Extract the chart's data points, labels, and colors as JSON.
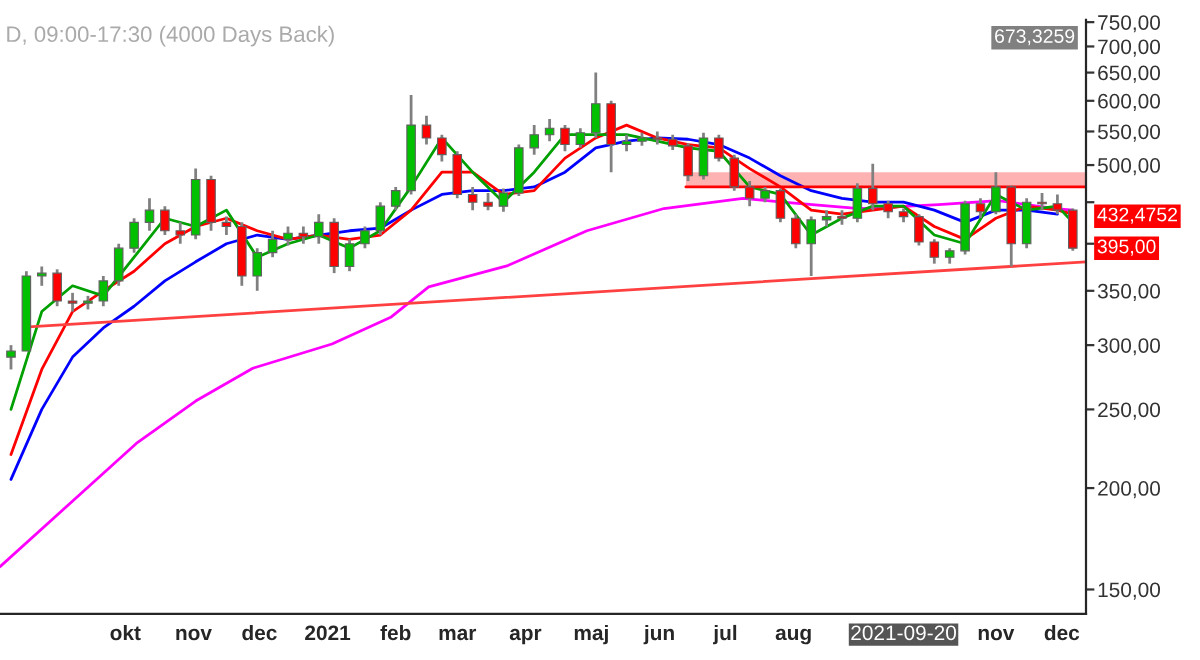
{
  "chart_data": {
    "type": "candlestick",
    "title": "D, 09:00-17:30 (4000 Days Back)",
    "x": [
      "2020-08-10",
      "2020-08-17",
      "2020-08-24",
      "2020-08-31",
      "2020-09-07",
      "2020-09-14",
      "2020-09-21",
      "2020-09-28",
      "2020-10-05",
      "2020-10-12",
      "2020-10-19",
      "2020-10-26",
      "2020-11-02",
      "2020-11-09",
      "2020-11-16",
      "2020-11-23",
      "2020-11-30",
      "2020-12-07",
      "2020-12-14",
      "2020-12-21",
      "2020-12-28",
      "2021-01-04",
      "2021-01-11",
      "2021-01-18",
      "2021-01-25",
      "2021-02-01",
      "2021-02-08",
      "2021-02-15",
      "2021-02-22",
      "2021-03-01",
      "2021-03-08",
      "2021-03-15",
      "2021-03-22",
      "2021-03-29",
      "2021-04-05",
      "2021-04-12",
      "2021-04-19",
      "2021-04-26",
      "2021-05-03",
      "2021-05-10",
      "2021-05-17",
      "2021-05-24",
      "2021-05-31",
      "2021-06-07",
      "2021-06-14",
      "2021-06-21",
      "2021-06-28",
      "2021-07-05",
      "2021-07-12",
      "2021-07-19",
      "2021-07-26",
      "2021-08-02",
      "2021-08-09",
      "2021-08-16",
      "2021-08-23",
      "2021-08-30",
      "2021-09-06",
      "2021-09-13",
      "2021-09-20",
      "2021-09-27",
      "2021-10-04",
      "2021-10-11",
      "2021-10-18",
      "2021-10-25",
      "2021-11-01",
      "2021-11-08",
      "2021-11-15",
      "2021-11-22",
      "2021-11-29",
      "2021-12-06"
    ],
    "ohlc": [
      [
        290,
        300,
        280,
        295
      ],
      [
        295,
        370,
        295,
        365
      ],
      [
        365,
        375,
        355,
        368
      ],
      [
        368,
        372,
        335,
        340
      ],
      [
        340,
        348,
        330,
        338
      ],
      [
        338,
        345,
        332,
        340
      ],
      [
        340,
        365,
        335,
        360
      ],
      [
        360,
        400,
        355,
        395
      ],
      [
        395,
        430,
        390,
        425
      ],
      [
        425,
        455,
        415,
        440
      ],
      [
        440,
        445,
        410,
        415
      ],
      [
        415,
        425,
        400,
        410
      ],
      [
        410,
        495,
        405,
        480
      ],
      [
        480,
        485,
        415,
        425
      ],
      [
        425,
        432,
        410,
        420
      ],
      [
        420,
        425,
        355,
        365
      ],
      [
        365,
        395,
        350,
        390
      ],
      [
        390,
        415,
        385,
        405
      ],
      [
        405,
        420,
        398,
        412
      ],
      [
        412,
        420,
        400,
        408
      ],
      [
        408,
        435,
        400,
        425
      ],
      [
        425,
        430,
        368,
        375
      ],
      [
        375,
        405,
        370,
        400
      ],
      [
        400,
        420,
        395,
        415
      ],
      [
        415,
        450,
        410,
        445
      ],
      [
        445,
        470,
        440,
        465
      ],
      [
        465,
        610,
        460,
        560
      ],
      [
        560,
        575,
        530,
        540
      ],
      [
        540,
        545,
        505,
        515
      ],
      [
        515,
        520,
        455,
        460
      ],
      [
        460,
        470,
        440,
        450
      ],
      [
        450,
        462,
        440,
        445
      ],
      [
        445,
        468,
        438,
        462
      ],
      [
        462,
        530,
        458,
        525
      ],
      [
        525,
        560,
        515,
        545
      ],
      [
        545,
        570,
        535,
        555
      ],
      [
        555,
        560,
        520,
        530
      ],
      [
        530,
        555,
        525,
        548
      ],
      [
        548,
        650,
        540,
        595
      ],
      [
        595,
        600,
        490,
        530
      ],
      [
        530,
        545,
        520,
        535
      ],
      [
        535,
        548,
        528,
        540
      ],
      [
        540,
        550,
        530,
        538
      ],
      [
        538,
        545,
        522,
        528
      ],
      [
        528,
        532,
        478,
        485
      ],
      [
        485,
        548,
        480,
        540
      ],
      [
        540,
        545,
        505,
        510
      ],
      [
        510,
        515,
        465,
        470
      ],
      [
        470,
        478,
        445,
        455
      ],
      [
        455,
        470,
        450,
        465
      ],
      [
        465,
        468,
        425,
        430
      ],
      [
        430,
        435,
        395,
        400
      ],
      [
        400,
        432,
        365,
        428
      ],
      [
        428,
        440,
        420,
        432
      ],
      [
        432,
        440,
        422,
        430
      ],
      [
        430,
        475,
        425,
        468
      ],
      [
        468,
        502,
        440,
        448
      ],
      [
        448,
        452,
        430,
        438
      ],
      [
        438,
        442,
        425,
        432
      ],
      [
        432,
        435,
        398,
        402
      ],
      [
        402,
        405,
        378,
        385
      ],
      [
        385,
        395,
        378,
        392
      ],
      [
        392,
        452,
        388,
        448
      ],
      [
        448,
        455,
        430,
        438
      ],
      [
        438,
        490,
        435,
        470
      ],
      [
        470,
        472,
        375,
        400
      ],
      [
        400,
        455,
        395,
        450
      ],
      [
        450,
        462,
        440,
        448
      ],
      [
        448,
        460,
        435,
        440
      ],
      [
        440,
        442,
        392,
        395
      ]
    ],
    "series": [
      {
        "type": "line",
        "color": "#ff00ff",
        "x": [
          "2020-08-05",
          "2020-10-06",
          "2020-11-02",
          "2020-11-28",
          "2021-01-03",
          "2021-01-30",
          "2021-02-16",
          "2021-03-24",
          "2021-04-29",
          "2021-06-03",
          "2021-07-09",
          "2021-07-27",
          "2021-08-31",
          "2021-10-06",
          "2021-11-02",
          "2021-11-28",
          "2021-12-06"
        ],
        "values": [
          160,
          227,
          256,
          281,
          301,
          325,
          354,
          376,
          415,
          442,
          455,
          450,
          442,
          447,
          452,
          442,
          440
        ]
      },
      {
        "type": "line",
        "color": "#0000ff",
        "x": [
          "2020-08-10",
          "2020-08-24",
          "2020-09-07",
          "2020-09-21",
          "2020-10-05",
          "2020-10-19",
          "2020-11-02",
          "2020-11-16",
          "2020-11-30",
          "2020-12-14",
          "2020-12-28",
          "2021-01-11",
          "2021-01-25",
          "2021-02-08",
          "2021-02-22",
          "2021-03-08",
          "2021-03-22",
          "2021-04-05",
          "2021-04-19",
          "2021-05-03",
          "2021-05-17",
          "2021-05-31",
          "2021-06-14",
          "2021-06-28",
          "2021-07-12",
          "2021-07-26",
          "2021-08-09",
          "2021-08-23",
          "2021-09-06",
          "2021-09-20",
          "2021-10-04",
          "2021-10-18",
          "2021-11-01",
          "2021-11-15",
          "2021-11-29"
        ],
        "values": [
          205,
          250,
          290,
          315,
          335,
          360,
          380,
          400,
          410,
          405,
          410,
          415,
          418,
          440,
          460,
          465,
          465,
          470,
          490,
          525,
          535,
          540,
          538,
          530,
          510,
          485,
          465,
          455,
          450,
          450,
          440,
          425,
          440,
          440,
          435
        ]
      },
      {
        "type": "line",
        "color": "#ff0000",
        "x": [
          "2020-08-10",
          "2020-08-24",
          "2020-09-07",
          "2020-09-21",
          "2020-10-05",
          "2020-10-19",
          "2020-11-02",
          "2020-11-16",
          "2020-11-30",
          "2020-12-14",
          "2020-12-28",
          "2021-01-11",
          "2021-01-25",
          "2021-02-08",
          "2021-02-22",
          "2021-03-08",
          "2021-03-22",
          "2021-04-05",
          "2021-04-19",
          "2021-05-03",
          "2021-05-17",
          "2021-05-31",
          "2021-06-14",
          "2021-06-28",
          "2021-07-12",
          "2021-07-26",
          "2021-08-09",
          "2021-08-23",
          "2021-09-06",
          "2021-09-20",
          "2021-10-04",
          "2021-10-18",
          "2021-11-01",
          "2021-11-15",
          "2021-11-29",
          "2021-12-06"
        ],
        "values": [
          220,
          280,
          330,
          350,
          370,
          400,
          420,
          430,
          415,
          405,
          410,
          405,
          410,
          440,
          490,
          490,
          460,
          465,
          510,
          540,
          560,
          540,
          530,
          525,
          495,
          470,
          440,
          435,
          440,
          445,
          420,
          405,
          430,
          445,
          440,
          435
        ]
      },
      {
        "type": "line",
        "color": "#00a000",
        "x": [
          "2020-08-10",
          "2020-08-24",
          "2020-09-07",
          "2020-09-21",
          "2020-10-05",
          "2020-10-19",
          "2020-11-02",
          "2020-11-16",
          "2020-11-30",
          "2020-12-14",
          "2020-12-28",
          "2021-01-11",
          "2021-01-25",
          "2021-02-08",
          "2021-02-22",
          "2021-03-08",
          "2021-03-22",
          "2021-04-05",
          "2021-04-19",
          "2021-05-03",
          "2021-05-17",
          "2021-05-31",
          "2021-06-14",
          "2021-06-28",
          "2021-07-12",
          "2021-07-26",
          "2021-08-09",
          "2021-08-23",
          "2021-09-06",
          "2021-09-20",
          "2021-10-04",
          "2021-10-18",
          "2021-11-01",
          "2021-11-15",
          "2021-11-29",
          "2021-12-06"
        ],
        "values": [
          250,
          330,
          355,
          345,
          385,
          430,
          420,
          440,
          385,
          400,
          410,
          395,
          415,
          470,
          540,
          490,
          450,
          490,
          545,
          545,
          545,
          535,
          525,
          520,
          470,
          460,
          410,
          430,
          445,
          445,
          410,
          400,
          460,
          440,
          445,
          425
        ]
      },
      {
        "type": "line",
        "color": "#ff4040",
        "x": [
          "2020-08-18",
          "2021-12-12"
        ],
        "values": [
          316,
          380
        ]
      },
      {
        "type": "line",
        "color": "#ff0000",
        "x": [
          "2021-06-13",
          "2021-12-12"
        ],
        "values": [
          470,
          470
        ],
        "lower": [
          470,
          470
        ],
        "upper": [
          490,
          490
        ]
      }
    ],
    "xlim": [
      "2020-08-05",
      "2021-12-12"
    ],
    "xticks": [
      {
        "value": "2020-10-01",
        "label": "okt"
      },
      {
        "value": "2020-11-01",
        "label": "nov"
      },
      {
        "value": "2020-12-01",
        "label": "dec"
      },
      {
        "value": "2021-01-01",
        "label": "2021"
      },
      {
        "value": "2021-02-01",
        "label": "feb"
      },
      {
        "value": "2021-03-01",
        "label": "mar"
      },
      {
        "value": "2021-04-01",
        "label": "apr"
      },
      {
        "value": "2021-05-01",
        "label": "maj"
      },
      {
        "value": "2021-06-01",
        "label": "jun"
      },
      {
        "value": "2021-07-01",
        "label": "jul"
      },
      {
        "value": "2021-08-01",
        "label": "aug"
      },
      {
        "value": "2021-09-20",
        "label": "2021-09-20"
      },
      {
        "value": "2021-11-01",
        "label": "nov"
      },
      {
        "value": "2021-12-01",
        "label": "dec"
      }
    ],
    "ylim": [
      140,
      755
    ],
    "log": true,
    "yticks": [
      {
        "value": 150,
        "label": "150,00"
      },
      {
        "value": 200,
        "label": "200,00"
      },
      {
        "value": 250,
        "label": "250,00"
      },
      {
        "value": 300,
        "label": "300,00"
      },
      {
        "value": 350,
        "label": "350,00"
      },
      {
        "value": 400,
        "label": null
      },
      {
        "value": 450,
        "label": null
      },
      {
        "value": 500,
        "label": "500,00"
      },
      {
        "value": 550,
        "label": "550,00"
      },
      {
        "value": 600,
        "label": "600,00"
      },
      {
        "value": 650,
        "label": "650,00"
      },
      {
        "value": 700,
        "label": "700,00"
      },
      {
        "value": 750,
        "label": "750,00"
      }
    ],
    "annotations": [
      "673,3259",
      {
        "text": "432,4752",
        "x": "2021-12-06",
        "y": 432.4752
      },
      {
        "text": "395,00",
        "x": "2021-12-06",
        "y": 395
      }
    ],
    "grid": false,
    "legend": false
  }
}
